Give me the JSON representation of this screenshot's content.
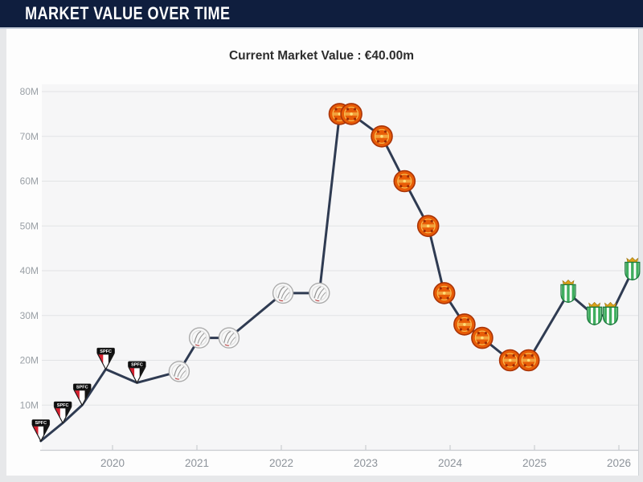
{
  "header": {
    "title": "MARKET VALUE OVER TIME"
  },
  "subtitle": {
    "text": "Current Market Value : €40.00m"
  },
  "chart_data": {
    "type": "line",
    "title": "MARKET VALUE OVER TIME",
    "subtitle": "Current Market Value : €40.00m",
    "current_value": "€40.00m",
    "xlabel": "",
    "ylabel": "",
    "x_ticks": [
      2020,
      2021,
      2022,
      2023,
      2024,
      2025,
      2026
    ],
    "y_ticks": [
      "10M",
      "20M",
      "30M",
      "40M",
      "50M",
      "60M",
      "70M",
      "80M"
    ],
    "xlim": [
      2019.1,
      2026.35
    ],
    "ylim": [
      0,
      85
    ],
    "grid": "horizontal",
    "legend": "none",
    "line_color": "#2f3b52",
    "unit": "€ million",
    "clubs": {
      "sao-paulo": {
        "name": "Sao Paulo FC",
        "badge_text": "SPFC",
        "colors": [
          "#0d0d0d",
          "#d6202f",
          "#ffffff"
        ]
      },
      "ajax": {
        "name": "Ajax Amsterdam",
        "colors": [
          "#f8f8f8",
          "#909090",
          "#c23b3b"
        ]
      },
      "man-united": {
        "name": "Manchester United",
        "colors": [
          "#e85c07",
          "#aa3407",
          "#f7bc4e"
        ]
      },
      "betis": {
        "name": "Real Betis",
        "colors": [
          "#3fae5f",
          "#ffffff",
          "#dda219"
        ]
      }
    },
    "points": [
      {
        "x": 2019.15,
        "value": 2,
        "club": "sao-paulo"
      },
      {
        "x": 2019.41,
        "value": 6,
        "club": "sao-paulo"
      },
      {
        "x": 2019.64,
        "value": 10,
        "club": "sao-paulo"
      },
      {
        "x": 2019.92,
        "value": 18,
        "club": "sao-paulo"
      },
      {
        "x": 2020.29,
        "value": 15,
        "club": "sao-paulo"
      },
      {
        "x": 2020.79,
        "value": 17.5,
        "club": "ajax"
      },
      {
        "x": 2021.03,
        "value": 25,
        "club": "ajax"
      },
      {
        "x": 2021.38,
        "value": 25,
        "club": "ajax"
      },
      {
        "x": 2022.02,
        "value": 35,
        "club": "ajax"
      },
      {
        "x": 2022.45,
        "value": 35,
        "club": "ajax"
      },
      {
        "x": 2022.69,
        "value": 75,
        "club": "man-united"
      },
      {
        "x": 2022.83,
        "value": 75,
        "club": "man-united"
      },
      {
        "x": 2023.19,
        "value": 70,
        "club": "man-united"
      },
      {
        "x": 2023.46,
        "value": 60,
        "club": "man-united"
      },
      {
        "x": 2023.74,
        "value": 50,
        "club": "man-united"
      },
      {
        "x": 2023.93,
        "value": 35,
        "club": "man-united"
      },
      {
        "x": 2024.17,
        "value": 28,
        "club": "man-united"
      },
      {
        "x": 2024.38,
        "value": 25,
        "club": "man-united"
      },
      {
        "x": 2024.71,
        "value": 20,
        "club": "man-united"
      },
      {
        "x": 2024.93,
        "value": 20,
        "club": "man-united"
      },
      {
        "x": 2025.4,
        "value": 35,
        "club": "betis"
      },
      {
        "x": 2025.71,
        "value": 30,
        "club": "betis"
      },
      {
        "x": 2025.9,
        "value": 30,
        "club": "betis"
      },
      {
        "x": 2026.16,
        "value": 40,
        "club": "betis"
      }
    ]
  }
}
